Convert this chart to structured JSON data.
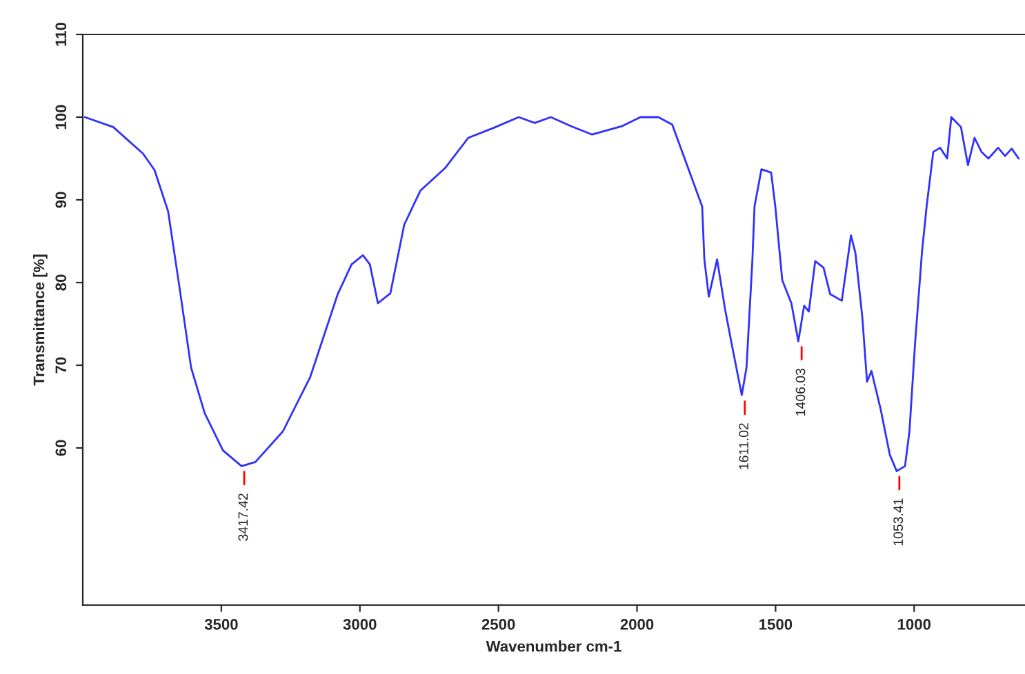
{
  "chart_data": {
    "type": "line",
    "xlabel": "Wavenumber cm-1",
    "ylabel": "Transmittance [%]",
    "xlim": [
      4000,
      600
    ],
    "xticks": [
      3500,
      3000,
      2500,
      2000,
      1500,
      1000
    ],
    "ylim": [
      41,
      110
    ],
    "yticks": [
      60,
      70,
      80,
      90,
      100,
      110
    ],
    "grid": false,
    "marker": "none",
    "line_style": "solid",
    "series": [
      {
        "color": "#3030ff",
        "x": [
          3992,
          3890,
          3783,
          3741,
          3692,
          3650,
          3609,
          3560,
          3494,
          3427,
          3377,
          3278,
          3179,
          3080,
          3030,
          2989,
          2964,
          2935,
          2890,
          2840,
          2782,
          2691,
          2609,
          2518,
          2427,
          2369,
          2311,
          2237,
          2162,
          2055,
          1988,
          1923,
          1873,
          1765,
          1757,
          1741,
          1711,
          1683,
          1658,
          1622,
          1605,
          1584,
          1576,
          1551,
          1516,
          1501,
          1476,
          1443,
          1418,
          1397,
          1380,
          1357,
          1327,
          1303,
          1261,
          1228,
          1212,
          1187,
          1170,
          1154,
          1121,
          1088,
          1063,
          1033,
          1017,
          997,
          972,
          955,
          931,
          906,
          881,
          866,
          831,
          806,
          782,
          757,
          732,
          697,
          672,
          648,
          623
        ],
        "values": [
          100,
          98.8,
          95.6,
          93.6,
          88.6,
          79.2,
          69.7,
          64.2,
          59.7,
          57.8,
          58.3,
          62,
          68.6,
          78.6,
          82.2,
          83.3,
          82.2,
          77.5,
          78.7,
          87,
          91.1,
          93.9,
          97.5,
          98.7,
          100,
          99.3,
          100,
          98.9,
          97.9,
          98.9,
          100,
          100,
          99.1,
          89.2,
          82.8,
          78.3,
          82.8,
          76.9,
          72.5,
          66.4,
          69.7,
          82.5,
          89.2,
          93.7,
          93.3,
          89.2,
          80.3,
          77.5,
          72.9,
          77.2,
          76.5,
          82.6,
          81.8,
          78.6,
          77.8,
          85.7,
          83.6,
          75.8,
          68,
          69.3,
          64.7,
          59.2,
          57.2,
          57.8,
          62,
          72.5,
          83.6,
          89.2,
          95.8,
          96.3,
          95,
          100,
          98.8,
          94.2,
          97.5,
          95.8,
          95,
          96.3,
          95.3,
          96.2,
          95
        ]
      }
    ],
    "annotations": [
      {
        "text": "3417.42",
        "x": 3417.42,
        "y": 57.8
      },
      {
        "text": "1611.02",
        "x": 1611.02,
        "y": 66.3
      },
      {
        "text": "1406.03",
        "x": 1406.03,
        "y": 72.9
      },
      {
        "text": "1053.41",
        "x": 1053.41,
        "y": 57.2
      }
    ]
  }
}
